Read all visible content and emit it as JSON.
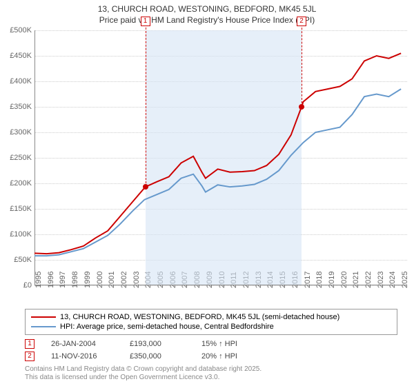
{
  "title": "13, CHURCH ROAD, WESTONING, BEDFORD, MK45 5JL",
  "subtitle": "Price paid vs. HM Land Registry's House Price Index (HPI)",
  "chart": {
    "type": "line",
    "background_color": "#ffffff",
    "grid_color": "#cccccc",
    "ylim": [
      0,
      500000
    ],
    "ytick_step": 50000,
    "ytick_labels": [
      "£0",
      "£50K",
      "£100K",
      "£150K",
      "£200K",
      "£250K",
      "£300K",
      "£350K",
      "£400K",
      "£450K",
      "£500K"
    ],
    "xlim": [
      1995,
      2025.5
    ],
    "xticks": [
      1995,
      1996,
      1997,
      1998,
      1999,
      2000,
      2001,
      2002,
      2003,
      2004,
      2005,
      2006,
      2007,
      2008,
      2009,
      2010,
      2011,
      2012,
      2013,
      2014,
      2015,
      2016,
      2017,
      2018,
      2019,
      2020,
      2021,
      2022,
      2023,
      2024,
      2025
    ],
    "shade_range": [
      2004.07,
      2016.86
    ],
    "shade_color": "#d6e4f5",
    "series": [
      {
        "name": "property",
        "label": "13, CHURCH ROAD, WESTONING, BEDFORD, MK45 5JL (semi-detached house)",
        "color": "#cc0000",
        "line_width": 2,
        "data": [
          [
            1995,
            63000
          ],
          [
            1996,
            62000
          ],
          [
            1997,
            64000
          ],
          [
            1998,
            70000
          ],
          [
            1999,
            77000
          ],
          [
            2000,
            93000
          ],
          [
            2001,
            107000
          ],
          [
            2002,
            135000
          ],
          [
            2003,
            163000
          ],
          [
            2004.07,
            193000
          ],
          [
            2005,
            203000
          ],
          [
            2006,
            213000
          ],
          [
            2007,
            240000
          ],
          [
            2008,
            253000
          ],
          [
            2008.7,
            222000
          ],
          [
            2009,
            210000
          ],
          [
            2010,
            228000
          ],
          [
            2011,
            222000
          ],
          [
            2012,
            223000
          ],
          [
            2013,
            225000
          ],
          [
            2014,
            235000
          ],
          [
            2015,
            257000
          ],
          [
            2016,
            295000
          ],
          [
            2016.86,
            350000
          ],
          [
            2017,
            360000
          ],
          [
            2018,
            380000
          ],
          [
            2019,
            385000
          ],
          [
            2020,
            390000
          ],
          [
            2021,
            405000
          ],
          [
            2022,
            440000
          ],
          [
            2023,
            450000
          ],
          [
            2024,
            445000
          ],
          [
            2025,
            455000
          ]
        ]
      },
      {
        "name": "hpi",
        "label": "HPI: Average price, semi-detached house, Central Bedfordshire",
        "color": "#6699cc",
        "line_width": 2,
        "data": [
          [
            1995,
            58000
          ],
          [
            1996,
            58000
          ],
          [
            1997,
            60000
          ],
          [
            1998,
            66000
          ],
          [
            1999,
            72000
          ],
          [
            2000,
            85000
          ],
          [
            2001,
            98000
          ],
          [
            2002,
            120000
          ],
          [
            2003,
            145000
          ],
          [
            2004,
            168000
          ],
          [
            2005,
            178000
          ],
          [
            2006,
            188000
          ],
          [
            2007,
            210000
          ],
          [
            2008,
            218000
          ],
          [
            2008.7,
            195000
          ],
          [
            2009,
            183000
          ],
          [
            2010,
            197000
          ],
          [
            2011,
            193000
          ],
          [
            2012,
            195000
          ],
          [
            2013,
            198000
          ],
          [
            2014,
            208000
          ],
          [
            2015,
            225000
          ],
          [
            2016,
            255000
          ],
          [
            2017,
            280000
          ],
          [
            2018,
            300000
          ],
          [
            2019,
            305000
          ],
          [
            2020,
            310000
          ],
          [
            2021,
            335000
          ],
          [
            2022,
            370000
          ],
          [
            2023,
            375000
          ],
          [
            2024,
            370000
          ],
          [
            2025,
            385000
          ]
        ]
      }
    ],
    "sale_markers": [
      {
        "id": "1",
        "year": 2004.07,
        "price": 193000
      },
      {
        "id": "2",
        "year": 2016.86,
        "price": 350000
      }
    ]
  },
  "legend": {
    "items": [
      {
        "color": "#cc0000",
        "label": "13, CHURCH ROAD, WESTONING, BEDFORD, MK45 5JL (semi-detached house)"
      },
      {
        "color": "#6699cc",
        "label": "HPI: Average price, semi-detached house, Central Bedfordshire"
      }
    ]
  },
  "sales": [
    {
      "id": "1",
      "date": "26-JAN-2004",
      "price": "£193,000",
      "diff": "15% ↑ HPI"
    },
    {
      "id": "2",
      "date": "11-NOV-2016",
      "price": "£350,000",
      "diff": "20% ↑ HPI"
    }
  ],
  "attribution": {
    "line1": "Contains HM Land Registry data © Crown copyright and database right 2025.",
    "line2": "This data is licensed under the Open Government Licence v3.0."
  }
}
